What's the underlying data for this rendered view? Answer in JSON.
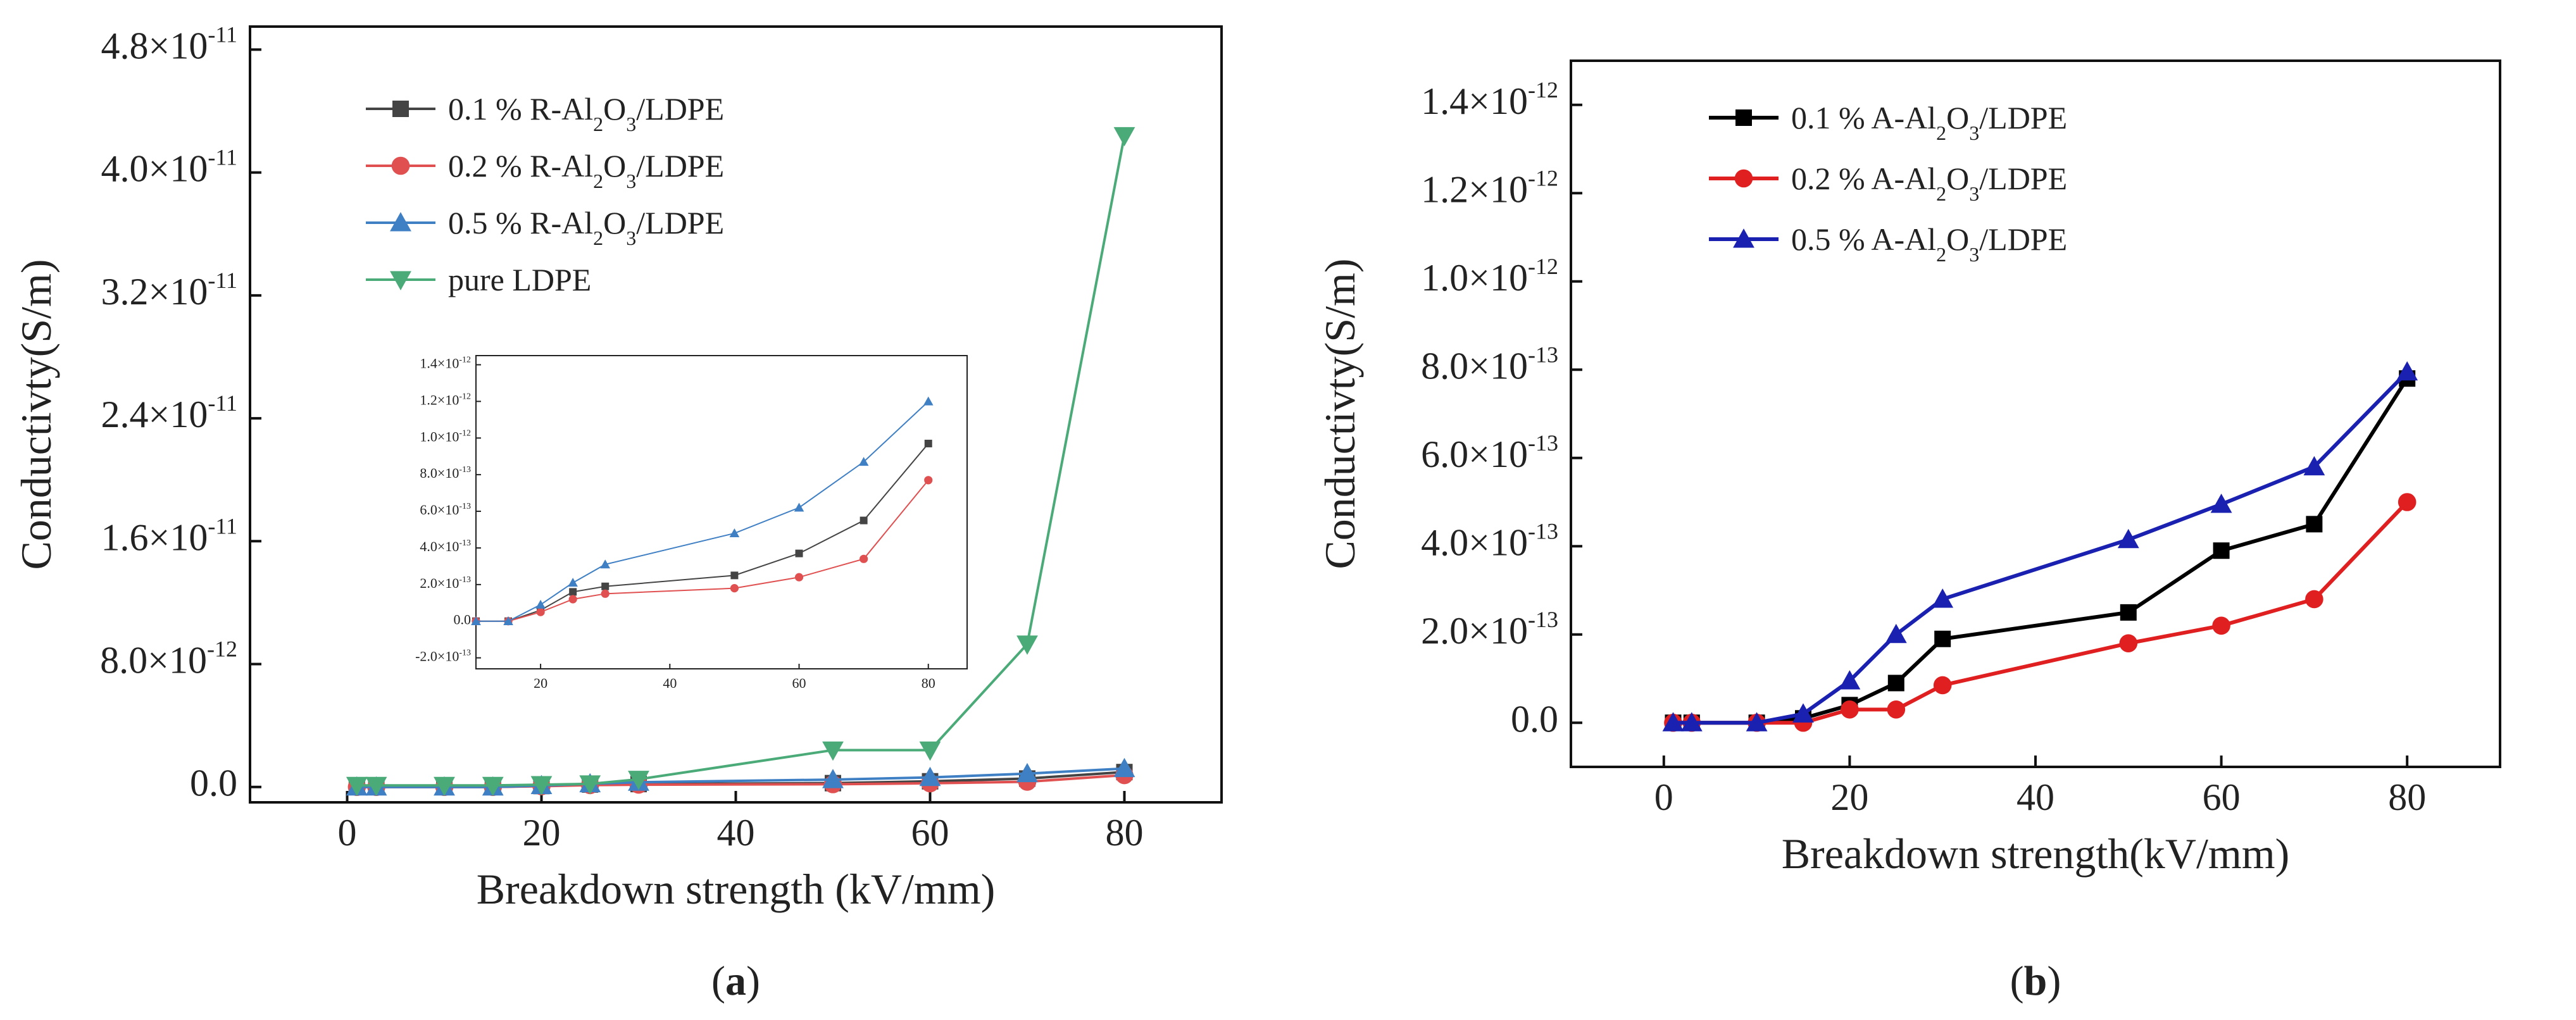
{
  "chart_data": [
    {
      "type": "line",
      "panel_caption": {
        "open": "(",
        "letter": "a",
        "close": ")"
      },
      "xlabel": "Breakdown strength (kV/mm)",
      "ylabel": "Conductivty(S/m)",
      "xlim": [
        -10,
        90
      ],
      "ylim": [
        -1e-12,
        4.95e-11
      ],
      "xticks": [
        0,
        20,
        40,
        60,
        80
      ],
      "xtick_labels": [
        "0",
        "20",
        "40",
        "60",
        "80"
      ],
      "yticks": [
        {
          "value": 0,
          "mantissa": "0.0",
          "exp": ""
        },
        {
          "value": 8e-12,
          "mantissa": "8.0×10",
          "exp": "-12"
        },
        {
          "value": 1.6e-11,
          "mantissa": "1.6×10",
          "exp": "-11"
        },
        {
          "value": 2.4e-11,
          "mantissa": "2.4×10",
          "exp": "-11"
        },
        {
          "value": 3.2e-11,
          "mantissa": "3.2×10",
          "exp": "-11"
        },
        {
          "value": 4e-11,
          "mantissa": "4.0×10",
          "exp": "-11"
        },
        {
          "value": 4.8e-11,
          "mantissa": "4.8×10",
          "exp": "-11"
        }
      ],
      "legend_position": "top-left",
      "x": [
        1,
        3,
        10,
        15,
        20,
        25,
        30,
        50,
        60,
        70,
        80
      ],
      "series": [
        {
          "name": "0.1 % R-Al2O3/LDPE",
          "label_pre": "0.1 % R-Al",
          "sub1": "2",
          "label_mid": "O",
          "sub2": "3",
          "label_post": "/LDPE",
          "color": "#444444",
          "marker": "square",
          "values": [
            0,
            0,
            0,
            0,
            6e-14,
            1.6e-13,
            1.9e-13,
            2.5e-13,
            3.7e-13,
            5.5e-13,
            9.7e-13
          ]
        },
        {
          "name": "0.2 % R-Al2O3/LDPE",
          "label_pre": "0.2 % R-Al",
          "sub1": "2",
          "label_mid": "O",
          "sub2": "3",
          "label_post": "/LDPE",
          "color": "#e05050",
          "marker": "circle",
          "values": [
            0,
            0,
            0,
            0,
            5e-14,
            1.2e-13,
            1.5e-13,
            1.8e-13,
            2.4e-13,
            3.4e-13,
            7.7e-13
          ]
        },
        {
          "name": "0.5 % R-Al2O3/LDPE",
          "label_pre": "0.5 % R-Al",
          "sub1": "2",
          "label_mid": "O",
          "sub2": "3",
          "label_post": "/LDPE",
          "color": "#3f7fc4",
          "marker": "triangle-up",
          "values": [
            0,
            0,
            0,
            0,
            9e-14,
            2.1e-13,
            3.1e-13,
            4.8e-13,
            6.2e-13,
            8.7e-13,
            1.2e-12
          ]
        },
        {
          "name": "pure LDPE",
          "label_pre": "pure LDPE",
          "sub1": "",
          "label_mid": "",
          "sub2": "",
          "label_post": "",
          "color": "#4aaa78",
          "marker": "triangle-down",
          "values": [
            1e-13,
            1e-13,
            1e-13,
            1e-13,
            1.5e-13,
            2e-13,
            5e-13,
            2.4e-12,
            2.4e-12,
            9.3e-12,
            4.24e-11
          ]
        }
      ],
      "inset": {
        "series_from_main": [
          0,
          1,
          2
        ],
        "xlim": [
          10,
          86
        ],
        "ylim": [
          -2.6e-13,
          1.45e-12
        ],
        "xticks": [
          20,
          40,
          60,
          80
        ],
        "xtick_labels": [
          "20",
          "40",
          "60",
          "80"
        ],
        "yticks": [
          {
            "value": -2e-13,
            "mantissa": "-2.0×10",
            "exp": "-13"
          },
          {
            "value": 0,
            "mantissa": "0.0",
            "exp": ""
          },
          {
            "value": 2e-13,
            "mantissa": "2.0×10",
            "exp": "-13"
          },
          {
            "value": 4e-13,
            "mantissa": "4.0×10",
            "exp": "-13"
          },
          {
            "value": 6e-13,
            "mantissa": "6.0×10",
            "exp": "-13"
          },
          {
            "value": 8e-13,
            "mantissa": "8.0×10",
            "exp": "-13"
          },
          {
            "value": 1e-12,
            "mantissa": "1.0×10",
            "exp": "-12"
          },
          {
            "value": 1.2e-12,
            "mantissa": "1.2×10",
            "exp": "-12"
          },
          {
            "value": 1.4e-12,
            "mantissa": "1.4×10",
            "exp": "-12"
          }
        ]
      }
    },
    {
      "type": "line",
      "panel_caption": {
        "open": "(",
        "letter": "b",
        "close": ")"
      },
      "xlabel": "Breakdown strength(kV/mm)",
      "ylabel": "Conductivty(S/m)",
      "xlim": [
        -10,
        90
      ],
      "ylim": [
        -1e-13,
        1.5e-12
      ],
      "xticks": [
        0,
        20,
        40,
        60,
        80
      ],
      "xtick_labels": [
        "0",
        "20",
        "40",
        "60",
        "80"
      ],
      "yticks": [
        {
          "value": 0,
          "mantissa": "0.0",
          "exp": ""
        },
        {
          "value": 2e-13,
          "mantissa": "2.0×10",
          "exp": "-13"
        },
        {
          "value": 4e-13,
          "mantissa": "4.0×10",
          "exp": "-13"
        },
        {
          "value": 6e-13,
          "mantissa": "6.0×10",
          "exp": "-13"
        },
        {
          "value": 8e-13,
          "mantissa": "8.0×10",
          "exp": "-13"
        },
        {
          "value": 1e-12,
          "mantissa": "1.0×10",
          "exp": "-12"
        },
        {
          "value": 1.2e-12,
          "mantissa": "1.2×10",
          "exp": "-12"
        },
        {
          "value": 1.4e-12,
          "mantissa": "1.4×10",
          "exp": "-12"
        }
      ],
      "legend_position": "top-left",
      "x": [
        1,
        3,
        10,
        15,
        20,
        25,
        30,
        50,
        60,
        70,
        80
      ],
      "series": [
        {
          "name": "0.1 % A-Al2O3/LDPE",
          "label_pre": "0.1 % A-Al",
          "sub1": "2",
          "label_mid": "O",
          "sub2": "3",
          "label_post": "/LDPE",
          "color": "#000000",
          "marker": "square",
          "values": [
            0,
            0,
            0,
            1e-14,
            4e-14,
            9e-14,
            1.9e-13,
            2.5e-13,
            3.9e-13,
            4.5e-13,
            7.8e-13
          ]
        },
        {
          "name": "0.2 % A-Al2O3/LDPE",
          "label_pre": "0.2 % A-Al",
          "sub1": "2",
          "label_mid": "O",
          "sub2": "3",
          "label_post": "/LDPE",
          "color": "#e02020",
          "marker": "circle",
          "values": [
            0,
            0,
            0,
            0,
            3e-14,
            3e-14,
            8.5e-14,
            1.8e-13,
            2.2e-13,
            2.8e-13,
            5e-13
          ]
        },
        {
          "name": "0.5 % A-Al2O3/LDPE",
          "label_pre": "0.5 % A-Al",
          "sub1": "2",
          "label_mid": "O",
          "sub2": "3",
          "label_post": "/LDPE",
          "color": "#1a20b0",
          "marker": "triangle-up",
          "values": [
            0,
            0,
            0,
            2e-14,
            9.5e-14,
            2e-13,
            2.8e-13,
            4.15e-13,
            4.95e-13,
            5.8e-13,
            7.95e-13
          ]
        }
      ]
    }
  ]
}
